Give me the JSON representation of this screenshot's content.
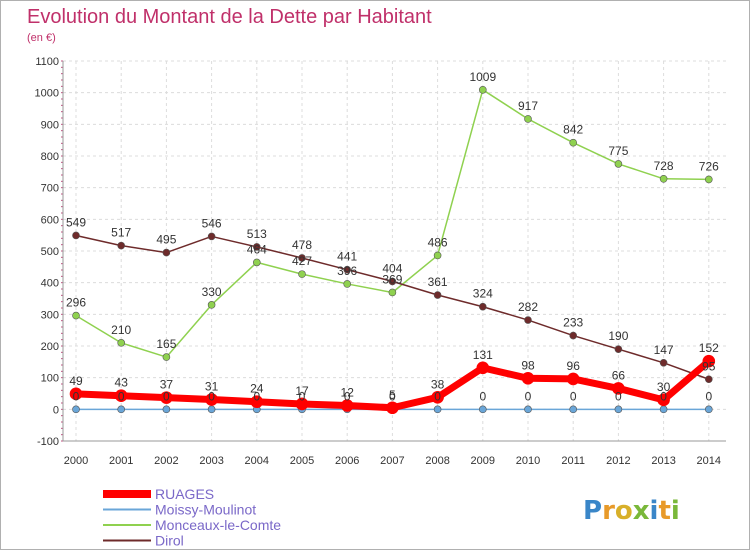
{
  "chart_data": {
    "type": "line",
    "title": "Evolution du Montant de la Dette par Habitant",
    "subtitle": "(en €)",
    "xlabel": "",
    "ylabel": "",
    "x": [
      "2000",
      "2001",
      "2002",
      "2003",
      "2004",
      "2005",
      "2006",
      "2007",
      "2008",
      "2009",
      "2010",
      "2011",
      "2012",
      "2013",
      "2014"
    ],
    "ylim": [
      -100,
      1100
    ],
    "yticks": [
      "-100",
      "0",
      "100",
      "200",
      "300",
      "400",
      "500",
      "600",
      "700",
      "800",
      "900",
      "1000",
      "1100"
    ],
    "grid": true,
    "legend_position": "bottom-left",
    "series": [
      {
        "name": "RUAGES",
        "color": "#ff0000",
        "values": [
          49,
          43,
          37,
          31,
          24,
          17,
          12,
          5,
          38,
          131,
          98,
          96,
          66,
          30,
          152
        ],
        "labels": [
          "49",
          "43",
          "37",
          "31",
          "24",
          "17",
          "12",
          "5",
          "38",
          "131",
          "98",
          "96",
          "66",
          "30",
          "152"
        ]
      },
      {
        "name": "Moissy-Moulinot",
        "color": "#6aa6d8",
        "values": [
          0,
          0,
          0,
          0,
          0,
          0,
          0,
          0,
          0,
          0,
          0,
          0,
          0,
          0,
          0
        ],
        "labels": [
          "0",
          "0",
          "0",
          "0",
          "0",
          "0",
          "0",
          "0",
          "0",
          "0",
          "0",
          "0",
          "0",
          "0",
          "0"
        ]
      },
      {
        "name": "Monceaux-le-Comte",
        "color": "#8fd14f",
        "values": [
          296,
          210,
          165,
          330,
          464,
          427,
          396,
          369,
          486,
          1009,
          917,
          842,
          775,
          728,
          726
        ],
        "labels": [
          "296",
          "210",
          "165",
          "330",
          "464",
          "427",
          "396",
          "369",
          "486",
          "1009",
          "917",
          "842",
          "775",
          "728",
          "726"
        ]
      },
      {
        "name": "Dirol",
        "color": "#6e2b2b",
        "values": [
          549,
          517,
          495,
          546,
          513,
          478,
          441,
          404,
          361,
          324,
          282,
          233,
          190,
          147,
          95
        ],
        "labels": [
          "549",
          "517",
          "495",
          "546",
          "513",
          "478",
          "441",
          "404",
          "361",
          "324",
          "282",
          "233",
          "190",
          "147",
          "95"
        ]
      }
    ]
  },
  "logo": {
    "text": "Proxiti",
    "letters": [
      {
        "ch": "P",
        "color": "#3a86c8"
      },
      {
        "ch": "r",
        "color": "#e89a2a"
      },
      {
        "ch": "o",
        "color": "#d8b02a"
      },
      {
        "ch": "x",
        "color": "#7ab83a"
      },
      {
        "ch": "i",
        "color": "#3a86c8"
      },
      {
        "ch": "t",
        "color": "#e89a2a"
      },
      {
        "ch": "i",
        "color": "#7ab83a"
      }
    ]
  }
}
